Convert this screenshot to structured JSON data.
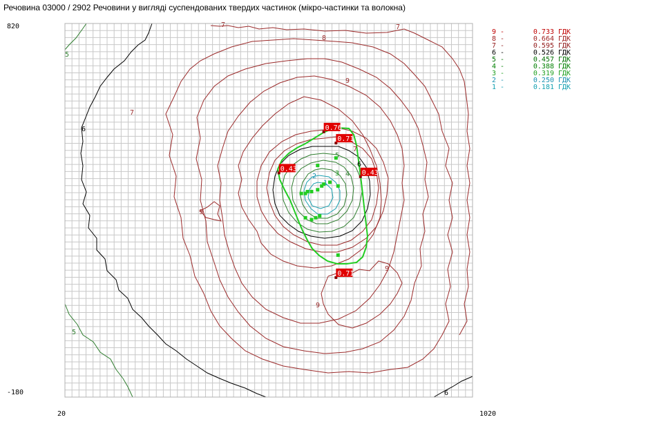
{
  "title": "Речовина 03000 / 2902 Речовини у вигляді суспендованих твердих частинок (мікро-частинки та волокна)",
  "axes": {
    "x_min_label": "20",
    "x_max_label": "1020",
    "y_max_label": "820",
    "y_min_label": "-180"
  },
  "legend": [
    {
      "level": "9",
      "dash": "-",
      "value": "0.733",
      "unit": "ГДК",
      "color": "#c00000"
    },
    {
      "level": "8",
      "dash": "-",
      "value": "0.664",
      "unit": "ГДК",
      "color": "#a02020"
    },
    {
      "level": "7",
      "dash": "-",
      "value": "0.595",
      "unit": "ГДК",
      "color": "#901818"
    },
    {
      "level": "6",
      "dash": "-",
      "value": "0.526",
      "unit": "ГДК",
      "color": "#000000"
    },
    {
      "level": "5",
      "dash": "-",
      "value": "0.457",
      "unit": "ГДК",
      "color": "#007000"
    },
    {
      "level": "4",
      "dash": "-",
      "value": "0.388",
      "unit": "ГДК",
      "color": "#008000"
    },
    {
      "level": "3",
      "dash": "-",
      "value": "0.319",
      "unit": "ГДК",
      "color": "#20a020"
    },
    {
      "level": "2",
      "dash": "-",
      "value": "0.250",
      "unit": "ГДК",
      "color": "#1890b0"
    },
    {
      "level": "1",
      "dash": "-",
      "value": "0.181",
      "unit": "ГДК",
      "color": "#10a0b0"
    }
  ],
  "colors": {
    "grid": "#c8c8c8",
    "contour_brown": "#9b2a2a",
    "contour_black": "#000000",
    "contour_green": "#2e7d2e",
    "contour_teal": "#1aa0b0",
    "boundary": "#22cc22",
    "marker_bg": "#e00000",
    "marker_text": "#ffffff",
    "source": "#22cc22"
  },
  "chart_data": {
    "type": "contour",
    "xlim": [
      20,
      1020
    ],
    "ylim": [
      -180,
      820
    ],
    "grid": true,
    "legend_position": "right",
    "contour_labels": [
      "7",
      "7",
      "8",
      "9",
      "7",
      "6",
      "5",
      "5",
      "6",
      "9",
      "9",
      "9",
      "8",
      "7",
      "6",
      "5",
      "4",
      "3",
      "2",
      "1"
    ],
    "value_markers": [
      {
        "label": "0.76",
        "x": 655,
        "y": 530
      },
      {
        "label": "0.71",
        "x": 685,
        "y": 500
      },
      {
        "label": "0.43",
        "x": 545,
        "y": 420
      },
      {
        "label": "0.43",
        "x": 745,
        "y": 410
      },
      {
        "label": "0.71",
        "x": 685,
        "y": 140
      }
    ],
    "sources": [
      {
        "x": 600,
        "y": 365
      },
      {
        "x": 610,
        "y": 365
      },
      {
        "x": 615,
        "y": 370
      },
      {
        "x": 625,
        "y": 370
      },
      {
        "x": 640,
        "y": 375
      },
      {
        "x": 650,
        "y": 385
      },
      {
        "x": 655,
        "y": 390
      },
      {
        "x": 670,
        "y": 395
      },
      {
        "x": 690,
        "y": 385
      },
      {
        "x": 640,
        "y": 440
      },
      {
        "x": 685,
        "y": 460
      },
      {
        "x": 610,
        "y": 300
      },
      {
        "x": 625,
        "y": 295
      },
      {
        "x": 635,
        "y": 300
      },
      {
        "x": 645,
        "y": 305
      },
      {
        "x": 690,
        "y": 200
      }
    ]
  }
}
